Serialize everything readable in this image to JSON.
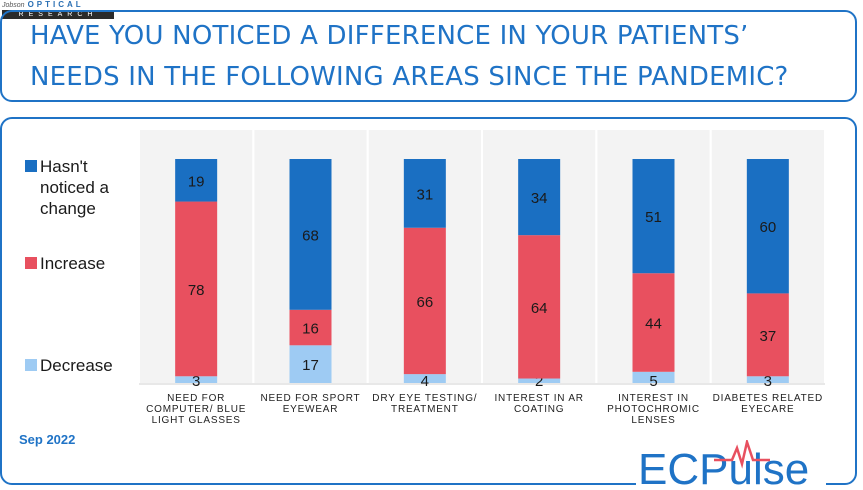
{
  "header": {
    "logo_top": "OPTICAL",
    "logo_small": "Jobson",
    "logo_bottom": "RESEARCH",
    "title_line1": "HAVE YOU NOTICED A DIFFERENCE IN YOUR PATIENTS’",
    "title_line2": "NEEDS IN THE FOLLOWING AREAS SINCE THE PANDEMIC?"
  },
  "footer": {
    "date": "Sep 2022",
    "brand": "ECPulse"
  },
  "chart_data": {
    "type": "bar",
    "stacked": true,
    "percent_stacked": true,
    "categories": [
      [
        "NEED FOR",
        "COMPUTER/ BLUE",
        "LIGHT GLASSES"
      ],
      [
        "NEED FOR SPORT",
        "EYEWEAR"
      ],
      [
        "DRY EYE TESTING/",
        "TREATMENT"
      ],
      [
        "INTEREST IN AR",
        "COATING"
      ],
      [
        "INTEREST IN",
        "PHOTOCHROMIC",
        "LENSES"
      ],
      [
        "DIABETES RELATED",
        "EYECARE"
      ]
    ],
    "series": [
      {
        "name": "Decrease",
        "color": "#9ecbf3",
        "values": [
          3,
          17,
          4,
          2,
          5,
          3
        ]
      },
      {
        "name": "Increase",
        "color": "#e8505f",
        "values": [
          78,
          16,
          66,
          64,
          44,
          37
        ]
      },
      {
        "name": "Hasn't noticed a change",
        "color": "#1a6fc2",
        "values": [
          19,
          68,
          31,
          34,
          51,
          60
        ]
      }
    ],
    "legend": {
      "placement": "left",
      "entries": [
        {
          "label_lines": [
            "Hasn't",
            "noticed a",
            "change"
          ],
          "color": "#1a6fc2"
        },
        {
          "label_lines": [
            "Increase"
          ],
          "color": "#e8505f"
        },
        {
          "label_lines": [
            "Decrease"
          ],
          "color": "#9ecbf3"
        }
      ]
    },
    "grid": false
  }
}
